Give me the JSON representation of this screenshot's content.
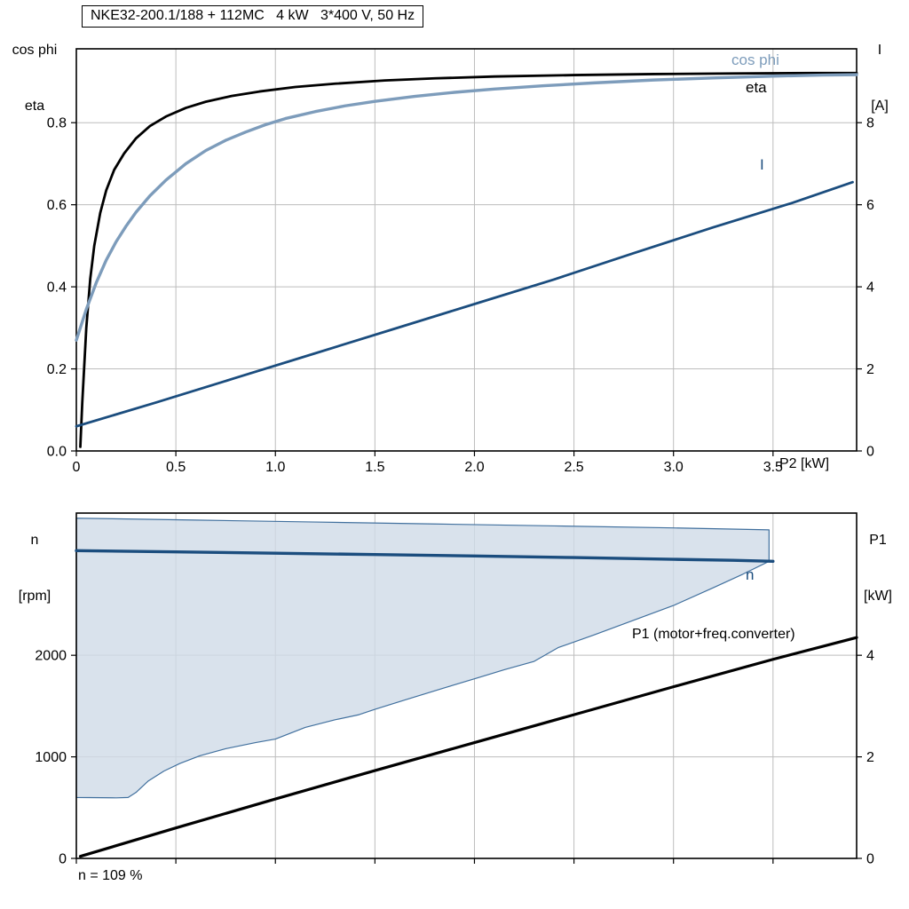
{
  "header": {
    "title": "NKE32-200.1/188 + 112MC   4 kW   3*400 V, 50 Hz"
  },
  "footer": {
    "note": "n = 109 %"
  },
  "colors": {
    "eta": "#000000",
    "cos_phi": "#7d9cbb",
    "current": "#1b4d7e",
    "speed": "#1b4d7e",
    "p1": "#000000",
    "band_fill": "#cfdbe7",
    "band_stroke": "#41709e",
    "grid": "#bdbdbd",
    "frame": "#000000"
  },
  "chart_data": [
    {
      "type": "line",
      "title": "NKE32-200.1/188 + 112MC   4 kW   3*400 V, 50 Hz",
      "x_axis": {
        "label": "P2 [kW]",
        "range": [
          0,
          3.92
        ],
        "tick_values": [
          0,
          0.5,
          1,
          1.5,
          2,
          2.5,
          3,
          3.5
        ],
        "tick_labels": [
          "0",
          "0.5",
          "1.0",
          "1.5",
          "2.0",
          "2.5",
          "3.0",
          "3.5"
        ]
      },
      "left_axis": {
        "label_lines": [
          "cos phi",
          "eta"
        ],
        "range": [
          0,
          0.98
        ],
        "tick_values": [
          0,
          0.2,
          0.4,
          0.6,
          0.8
        ],
        "tick_labels": [
          "0.0",
          "0.2",
          "0.4",
          "0.6",
          "0.8"
        ]
      },
      "right_axis": {
        "label_lines": [
          "I",
          "[A]"
        ],
        "range": [
          0,
          9.8
        ],
        "tick_values": [
          0,
          2,
          4,
          6,
          8
        ],
        "tick_labels": [
          "0",
          "2",
          "4",
          "6",
          "8"
        ]
      },
      "series": [
        {
          "name": "eta",
          "axis": "left",
          "color_key": "eta",
          "width": 2.8,
          "points": [
            [
              0.02,
              0.01
            ],
            [
              0.03,
              0.12
            ],
            [
              0.05,
              0.3
            ],
            [
              0.07,
              0.42
            ],
            [
              0.09,
              0.5
            ],
            [
              0.12,
              0.58
            ],
            [
              0.15,
              0.635
            ],
            [
              0.19,
              0.685
            ],
            [
              0.24,
              0.725
            ],
            [
              0.3,
              0.762
            ],
            [
              0.37,
              0.792
            ],
            [
              0.45,
              0.815
            ],
            [
              0.55,
              0.836
            ],
            [
              0.65,
              0.851
            ],
            [
              0.78,
              0.865
            ],
            [
              0.92,
              0.876
            ],
            [
              1.1,
              0.887
            ],
            [
              1.3,
              0.895
            ],
            [
              1.55,
              0.903
            ],
            [
              1.8,
              0.908
            ],
            [
              2.1,
              0.9125
            ],
            [
              2.5,
              0.916
            ],
            [
              2.9,
              0.9185
            ],
            [
              3.3,
              0.92
            ],
            [
              3.7,
              0.921
            ],
            [
              3.92,
              0.921
            ]
          ]
        },
        {
          "name": "cos phi",
          "axis": "left",
          "color_key": "cos_phi",
          "width": 3.4,
          "points": [
            [
              0,
              0.27
            ],
            [
              0.05,
              0.345
            ],
            [
              0.1,
              0.41
            ],
            [
              0.15,
              0.465
            ],
            [
              0.2,
              0.51
            ],
            [
              0.25,
              0.548
            ],
            [
              0.3,
              0.582
            ],
            [
              0.37,
              0.622
            ],
            [
              0.45,
              0.66
            ],
            [
              0.55,
              0.7
            ],
            [
              0.65,
              0.732
            ],
            [
              0.75,
              0.757
            ],
            [
              0.85,
              0.777
            ],
            [
              0.95,
              0.795
            ],
            [
              1.05,
              0.81
            ],
            [
              1.2,
              0.827
            ],
            [
              1.35,
              0.841
            ],
            [
              1.5,
              0.852
            ],
            [
              1.7,
              0.864
            ],
            [
              1.9,
              0.874
            ],
            [
              2.1,
              0.882
            ],
            [
              2.35,
              0.89
            ],
            [
              2.6,
              0.897
            ],
            [
              2.9,
              0.904
            ],
            [
              3.2,
              0.909
            ],
            [
              3.5,
              0.9135
            ],
            [
              3.75,
              0.916
            ],
            [
              3.92,
              0.917
            ]
          ]
        },
        {
          "name": "I",
          "axis": "right",
          "color_key": "current",
          "width": 2.8,
          "points": [
            [
              0,
              0.6
            ],
            [
              0.4,
              1.18
            ],
            [
              0.8,
              1.78
            ],
            [
              1.2,
              2.38
            ],
            [
              1.6,
              2.98
            ],
            [
              2.0,
              3.58
            ],
            [
              2.4,
              4.18
            ],
            [
              2.8,
              4.82
            ],
            [
              3.2,
              5.45
            ],
            [
              3.6,
              6.05
            ],
            [
              3.9,
              6.55
            ]
          ]
        }
      ]
    },
    {
      "type": "line",
      "x_axis": {
        "label": "",
        "range": [
          0,
          3.92
        ],
        "tick_values": [
          0,
          0.5,
          1,
          1.5,
          2,
          2.5,
          3,
          3.5
        ],
        "tick_labels": []
      },
      "left_axis": {
        "label_lines": [
          "n",
          "[rpm]"
        ],
        "range": [
          0,
          3400
        ],
        "tick_values": [
          0,
          1000,
          2000
        ],
        "tick_labels": [
          "0",
          "1000",
          "2000"
        ]
      },
      "right_axis": {
        "label_lines": [
          "P1",
          "[kW]"
        ],
        "range": [
          0,
          6.8
        ],
        "tick_values": [
          0,
          2,
          4
        ],
        "tick_labels": [
          "0",
          "2",
          "4"
        ]
      },
      "band": {
        "upper": [
          [
            0,
            3350
          ],
          [
            0.6,
            3331
          ],
          [
            1.2,
            3312
          ],
          [
            1.8,
            3293
          ],
          [
            2.4,
            3274
          ],
          [
            3.0,
            3254
          ],
          [
            3.48,
            3235
          ]
        ],
        "lower": [
          [
            0,
            600
          ],
          [
            0.2,
            596
          ],
          [
            0.26,
            600
          ],
          [
            0.3,
            650
          ],
          [
            0.36,
            760
          ],
          [
            0.44,
            860
          ],
          [
            0.52,
            935
          ],
          [
            0.62,
            1010
          ],
          [
            0.75,
            1080
          ],
          [
            0.9,
            1140
          ],
          [
            1.0,
            1175
          ],
          [
            1.15,
            1290
          ],
          [
            1.3,
            1365
          ],
          [
            1.42,
            1415
          ],
          [
            1.5,
            1468
          ],
          [
            1.65,
            1560
          ],
          [
            1.85,
            1680
          ],
          [
            2.0,
            1768
          ],
          [
            2.15,
            1858
          ],
          [
            2.3,
            1940
          ],
          [
            2.42,
            2075
          ],
          [
            2.6,
            2200
          ],
          [
            2.8,
            2345
          ],
          [
            3.0,
            2490
          ],
          [
            3.2,
            2665
          ],
          [
            3.35,
            2800
          ],
          [
            3.48,
            2925
          ]
        ]
      },
      "series": [
        {
          "name": "n",
          "axis": "left",
          "color_key": "speed",
          "width": 3.4,
          "points": [
            [
              0,
              3030
            ],
            [
              0.5,
              3018
            ],
            [
              1.0,
              3005
            ],
            [
              1.5,
              2992
            ],
            [
              2.0,
              2978
            ],
            [
              2.5,
              2962
            ],
            [
              3.0,
              2945
            ],
            [
              3.3,
              2935
            ],
            [
              3.5,
              2925
            ]
          ]
        },
        {
          "name": "P1 (motor+freq.converter)",
          "axis": "right",
          "color_key": "p1",
          "width": 3.2,
          "points": [
            [
              0.02,
              0.04
            ],
            [
              0.5,
              0.6
            ],
            [
              1.0,
              1.17
            ],
            [
              1.5,
              1.73
            ],
            [
              2.0,
              2.28
            ],
            [
              2.5,
              2.83
            ],
            [
              3.0,
              3.38
            ],
            [
              3.5,
              3.92
            ],
            [
              3.92,
              4.35
            ]
          ]
        }
      ]
    }
  ]
}
